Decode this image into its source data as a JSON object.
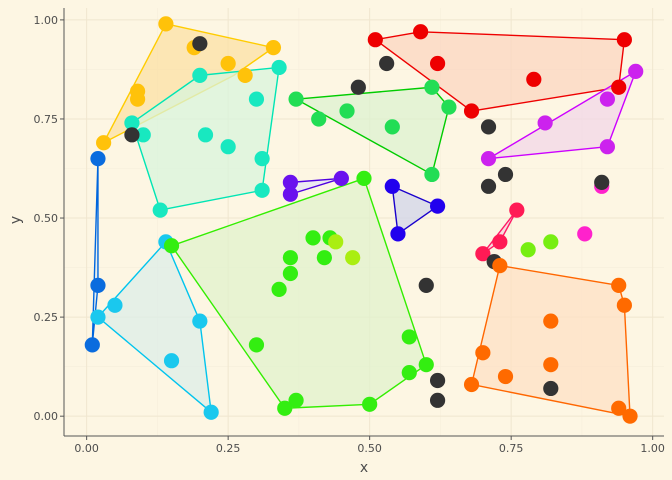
{
  "chart_data": {
    "type": "scatter",
    "xlabel": "x",
    "ylabel": "y",
    "xlim": [
      -0.04,
      1.02
    ],
    "ylim": [
      -0.05,
      1.03
    ],
    "xticks": [
      0.0,
      0.25,
      0.5,
      0.75,
      1.0
    ],
    "yticks": [
      0.0,
      0.25,
      0.5,
      0.75,
      1.0
    ],
    "xtick_labels": [
      "0.00",
      "0.25",
      "0.50",
      "0.75",
      "1.00"
    ],
    "ytick_labels": [
      "0.00",
      "0.25",
      "0.50",
      "0.75",
      "1.00"
    ],
    "grid": true,
    "legend": "none",
    "hulls": [
      {
        "color": "#ffcc00",
        "fill": "#fbe0a4",
        "vertices": [
          [
            0.14,
            0.99
          ],
          [
            0.33,
            0.93
          ],
          [
            0.26,
            0.86
          ],
          [
            0.03,
            0.69
          ]
        ]
      },
      {
        "color": "#00e5b4",
        "fill": "#d8f4dc",
        "vertices": [
          [
            0.08,
            0.74
          ],
          [
            0.2,
            0.86
          ],
          [
            0.34,
            0.88
          ],
          [
            0.31,
            0.57
          ],
          [
            0.13,
            0.52
          ]
        ]
      },
      {
        "color": "#00cc00",
        "fill": "#dcf2d0",
        "vertices": [
          [
            0.37,
            0.8
          ],
          [
            0.61,
            0.83
          ],
          [
            0.64,
            0.78
          ],
          [
            0.61,
            0.61
          ],
          [
            0.37,
            0.8
          ]
        ]
      },
      {
        "color": "#ee0000",
        "fill": "#fbd6c0",
        "vertices": [
          [
            0.51,
            0.95
          ],
          [
            0.59,
            0.97
          ],
          [
            0.95,
            0.95
          ],
          [
            0.94,
            0.83
          ],
          [
            0.68,
            0.77
          ]
        ]
      },
      {
        "color": "#cc00ff",
        "fill": "#f1d7e8",
        "vertices": [
          [
            0.97,
            0.87
          ],
          [
            0.92,
            0.68
          ],
          [
            0.71,
            0.65
          ],
          [
            0.97,
            0.87
          ]
        ]
      },
      {
        "color": "#0066dd",
        "fill": "#e0ecf2",
        "vertices": [
          [
            0.02,
            0.65
          ],
          [
            0.02,
            0.33
          ],
          [
            0.01,
            0.18
          ],
          [
            0.02,
            0.65
          ]
        ]
      },
      {
        "color": "#00c4ee",
        "fill": "#dceee8",
        "vertices": [
          [
            0.14,
            0.44
          ],
          [
            0.2,
            0.24
          ],
          [
            0.22,
            0.01
          ],
          [
            0.02,
            0.25
          ],
          [
            0.14,
            0.44
          ]
        ]
      },
      {
        "color": "#5000e0",
        "fill": "#e6e4f4",
        "vertices": [
          [
            0.36,
            0.59
          ],
          [
            0.45,
            0.6
          ],
          [
            0.36,
            0.56
          ],
          [
            0.36,
            0.59
          ]
        ]
      },
      {
        "color": "#1a00cc",
        "fill": "#d0d4ea",
        "vertices": [
          [
            0.54,
            0.58
          ],
          [
            0.62,
            0.53
          ],
          [
            0.55,
            0.46
          ],
          [
            0.54,
            0.58
          ]
        ]
      },
      {
        "color": "#33ee00",
        "fill": "#e0f2cc",
        "vertices": [
          [
            0.15,
            0.43
          ],
          [
            0.49,
            0.6
          ],
          [
            0.6,
            0.13
          ],
          [
            0.5,
            0.03
          ],
          [
            0.35,
            0.02
          ]
        ]
      },
      {
        "color": "#ff1a66",
        "fill": "#f6d6dc",
        "vertices": [
          [
            0.76,
            0.52
          ],
          [
            0.7,
            0.41
          ],
          [
            0.73,
            0.44
          ],
          [
            0.76,
            0.52
          ]
        ]
      },
      {
        "color": "#ff6600",
        "fill": "#fde0c4",
        "vertices": [
          [
            0.73,
            0.38
          ],
          [
            0.94,
            0.33
          ],
          [
            0.95,
            0.28
          ],
          [
            0.96,
            0.0
          ],
          [
            0.68,
            0.08
          ]
        ]
      }
    ],
    "points": [
      {
        "x": 0.14,
        "y": 0.99,
        "color": "#ffc20a"
      },
      {
        "x": 0.19,
        "y": 0.93,
        "color": "#ffc20a"
      },
      {
        "x": 0.33,
        "y": 0.93,
        "color": "#ffc20a"
      },
      {
        "x": 0.25,
        "y": 0.89,
        "color": "#ffc20a"
      },
      {
        "x": 0.28,
        "y": 0.86,
        "color": "#ffc20a"
      },
      {
        "x": 0.09,
        "y": 0.82,
        "color": "#ffc20a"
      },
      {
        "x": 0.09,
        "y": 0.8,
        "color": "#ffc20a"
      },
      {
        "x": 0.03,
        "y": 0.69,
        "color": "#ffc20a"
      },
      {
        "x": 0.2,
        "y": 0.94,
        "color": "#333333"
      },
      {
        "x": 0.34,
        "y": 0.88,
        "color": "#18e8c0"
      },
      {
        "x": 0.2,
        "y": 0.86,
        "color": "#18e8c0"
      },
      {
        "x": 0.3,
        "y": 0.8,
        "color": "#18e8c0"
      },
      {
        "x": 0.08,
        "y": 0.74,
        "color": "#18e8c0"
      },
      {
        "x": 0.1,
        "y": 0.71,
        "color": "#18e8c0"
      },
      {
        "x": 0.21,
        "y": 0.71,
        "color": "#18e8c0"
      },
      {
        "x": 0.25,
        "y": 0.68,
        "color": "#18e8c0"
      },
      {
        "x": 0.31,
        "y": 0.65,
        "color": "#18e8c0"
      },
      {
        "x": 0.31,
        "y": 0.57,
        "color": "#18e8c0"
      },
      {
        "x": 0.13,
        "y": 0.52,
        "color": "#18e8c0"
      },
      {
        "x": 0.08,
        "y": 0.71,
        "color": "#333333"
      },
      {
        "x": 0.37,
        "y": 0.8,
        "color": "#22dd55"
      },
      {
        "x": 0.61,
        "y": 0.83,
        "color": "#22dd55"
      },
      {
        "x": 0.64,
        "y": 0.78,
        "color": "#22dd55"
      },
      {
        "x": 0.46,
        "y": 0.77,
        "color": "#22dd55"
      },
      {
        "x": 0.41,
        "y": 0.75,
        "color": "#22dd55"
      },
      {
        "x": 0.54,
        "y": 0.73,
        "color": "#22dd55"
      },
      {
        "x": 0.61,
        "y": 0.61,
        "color": "#22dd55"
      },
      {
        "x": 0.48,
        "y": 0.83,
        "color": "#333333"
      },
      {
        "x": 0.53,
        "y": 0.89,
        "color": "#333333"
      },
      {
        "x": 0.51,
        "y": 0.95,
        "color": "#ee0000"
      },
      {
        "x": 0.59,
        "y": 0.97,
        "color": "#ee0000"
      },
      {
        "x": 0.62,
        "y": 0.89,
        "color": "#ee0000"
      },
      {
        "x": 0.95,
        "y": 0.95,
        "color": "#ee0000"
      },
      {
        "x": 0.79,
        "y": 0.85,
        "color": "#ee0000"
      },
      {
        "x": 0.94,
        "y": 0.83,
        "color": "#ee0000"
      },
      {
        "x": 0.68,
        "y": 0.77,
        "color": "#ee0000"
      },
      {
        "x": 0.97,
        "y": 0.87,
        "color": "#cc22ee"
      },
      {
        "x": 0.92,
        "y": 0.8,
        "color": "#cc22ee"
      },
      {
        "x": 0.81,
        "y": 0.74,
        "color": "#cc22ee"
      },
      {
        "x": 0.92,
        "y": 0.68,
        "color": "#cc22ee"
      },
      {
        "x": 0.71,
        "y": 0.65,
        "color": "#cc22ee"
      },
      {
        "x": 0.71,
        "y": 0.73,
        "color": "#333333"
      },
      {
        "x": 0.74,
        "y": 0.61,
        "color": "#333333"
      },
      {
        "x": 0.71,
        "y": 0.58,
        "color": "#333333"
      },
      {
        "x": 0.91,
        "y": 0.58,
        "color": "#ff22cc"
      },
      {
        "x": 0.91,
        "y": 0.59,
        "color": "#333333"
      },
      {
        "x": 0.88,
        "y": 0.46,
        "color": "#ff22cc"
      },
      {
        "x": 0.02,
        "y": 0.65,
        "color": "#0a6cde"
      },
      {
        "x": 0.02,
        "y": 0.33,
        "color": "#0a6cde"
      },
      {
        "x": 0.01,
        "y": 0.18,
        "color": "#0a6cde"
      },
      {
        "x": 0.14,
        "y": 0.44,
        "color": "#1ac8ee"
      },
      {
        "x": 0.05,
        "y": 0.28,
        "color": "#1ac8ee"
      },
      {
        "x": 0.02,
        "y": 0.25,
        "color": "#1ac8ee"
      },
      {
        "x": 0.2,
        "y": 0.24,
        "color": "#1ac8ee"
      },
      {
        "x": 0.15,
        "y": 0.14,
        "color": "#1ac8ee"
      },
      {
        "x": 0.22,
        "y": 0.01,
        "color": "#1ac8ee"
      },
      {
        "x": 0.36,
        "y": 0.59,
        "color": "#6a11ee"
      },
      {
        "x": 0.45,
        "y": 0.6,
        "color": "#6a11ee"
      },
      {
        "x": 0.36,
        "y": 0.56,
        "color": "#6a11ee"
      },
      {
        "x": 0.54,
        "y": 0.58,
        "color": "#2200ee"
      },
      {
        "x": 0.62,
        "y": 0.53,
        "color": "#2200ee"
      },
      {
        "x": 0.55,
        "y": 0.46,
        "color": "#2200ee"
      },
      {
        "x": 0.15,
        "y": 0.43,
        "color": "#33ee11"
      },
      {
        "x": 0.49,
        "y": 0.6,
        "color": "#33ee11"
      },
      {
        "x": 0.4,
        "y": 0.45,
        "color": "#33ee11"
      },
      {
        "x": 0.43,
        "y": 0.45,
        "color": "#33ee11"
      },
      {
        "x": 0.36,
        "y": 0.4,
        "color": "#33ee11"
      },
      {
        "x": 0.42,
        "y": 0.4,
        "color": "#33ee11"
      },
      {
        "x": 0.36,
        "y": 0.36,
        "color": "#33ee11"
      },
      {
        "x": 0.34,
        "y": 0.32,
        "color": "#33ee11"
      },
      {
        "x": 0.57,
        "y": 0.2,
        "color": "#33ee11"
      },
      {
        "x": 0.3,
        "y": 0.18,
        "color": "#33ee11"
      },
      {
        "x": 0.6,
        "y": 0.13,
        "color": "#33ee11"
      },
      {
        "x": 0.57,
        "y": 0.11,
        "color": "#33ee11"
      },
      {
        "x": 0.37,
        "y": 0.04,
        "color": "#33ee11"
      },
      {
        "x": 0.35,
        "y": 0.02,
        "color": "#33ee11"
      },
      {
        "x": 0.5,
        "y": 0.03,
        "color": "#33ee11"
      },
      {
        "x": 0.44,
        "y": 0.44,
        "color": "#aaee11"
      },
      {
        "x": 0.47,
        "y": 0.4,
        "color": "#aaee11"
      },
      {
        "x": 0.6,
        "y": 0.33,
        "color": "#333333"
      },
      {
        "x": 0.62,
        "y": 0.09,
        "color": "#333333"
      },
      {
        "x": 0.62,
        "y": 0.04,
        "color": "#333333"
      },
      {
        "x": 0.76,
        "y": 0.52,
        "color": "#ff1a55"
      },
      {
        "x": 0.73,
        "y": 0.44,
        "color": "#ff1a55"
      },
      {
        "x": 0.7,
        "y": 0.41,
        "color": "#ff1a55"
      },
      {
        "x": 0.78,
        "y": 0.42,
        "color": "#77ee11"
      },
      {
        "x": 0.82,
        "y": 0.44,
        "color": "#77ee11"
      },
      {
        "x": 0.72,
        "y": 0.39,
        "color": "#333333"
      },
      {
        "x": 0.73,
        "y": 0.38,
        "color": "#ff6a00"
      },
      {
        "x": 0.94,
        "y": 0.33,
        "color": "#ff6a00"
      },
      {
        "x": 0.95,
        "y": 0.28,
        "color": "#ff6a00"
      },
      {
        "x": 0.82,
        "y": 0.24,
        "color": "#ff6a00"
      },
      {
        "x": 0.7,
        "y": 0.16,
        "color": "#ff6a00"
      },
      {
        "x": 0.82,
        "y": 0.13,
        "color": "#ff6a00"
      },
      {
        "x": 0.74,
        "y": 0.1,
        "color": "#ff6a00"
      },
      {
        "x": 0.68,
        "y": 0.08,
        "color": "#ff6a00"
      },
      {
        "x": 0.94,
        "y": 0.02,
        "color": "#ff6a00"
      },
      {
        "x": 0.96,
        "y": 0.0,
        "color": "#ff6a00"
      },
      {
        "x": 0.82,
        "y": 0.07,
        "color": "#333333"
      }
    ]
  }
}
